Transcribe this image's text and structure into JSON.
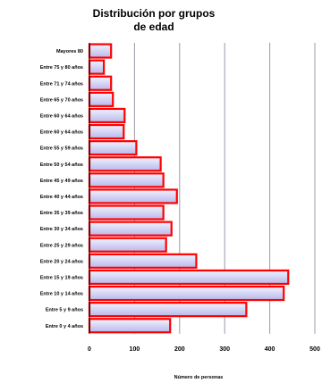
{
  "chart_data": {
    "type": "bar",
    "orientation": "horizontal",
    "title_lines": [
      "Distribución por grupos",
      "de edad"
    ],
    "categories": [
      "Mayores 80",
      "Entre 75 y 80 años",
      "Entre 71 y 74 años",
      "Entre 65 y 70 años",
      "Entre 60 y 64 años",
      "Entre 60 y 64 años",
      "Entre 55 y 59 años",
      "Entre 50 y 54 años",
      "Entre 45 y 49 años",
      "Entre 40 y 44 años",
      "Entre 35 y 39 años",
      "Entre 30 y 34 años",
      "Entre 25 y 29 años",
      "Entre 20 y 24 años",
      "Entre 15 y 19 años",
      "Entre 10 y 14 años",
      "Entre 5 y 9 años",
      "Entre 0 y 4 años"
    ],
    "values": [
      48,
      32,
      48,
      52,
      78,
      76,
      104,
      158,
      164,
      194,
      164,
      182,
      170,
      237,
      441,
      431,
      348,
      179
    ],
    "xlabel": "Número de personas",
    "ylabel": "",
    "xlim": [
      0,
      500
    ],
    "xticks": [
      "0",
      "100",
      "200",
      "300",
      "400",
      "500"
    ],
    "grid": "vertical",
    "legend": "none",
    "colors": {
      "bar_fill_light": "#f2f2ff",
      "bar_fill_dark": "#b8b8ea",
      "bar_stroke": "#ff0000",
      "grid": "#9a9aa8"
    }
  }
}
